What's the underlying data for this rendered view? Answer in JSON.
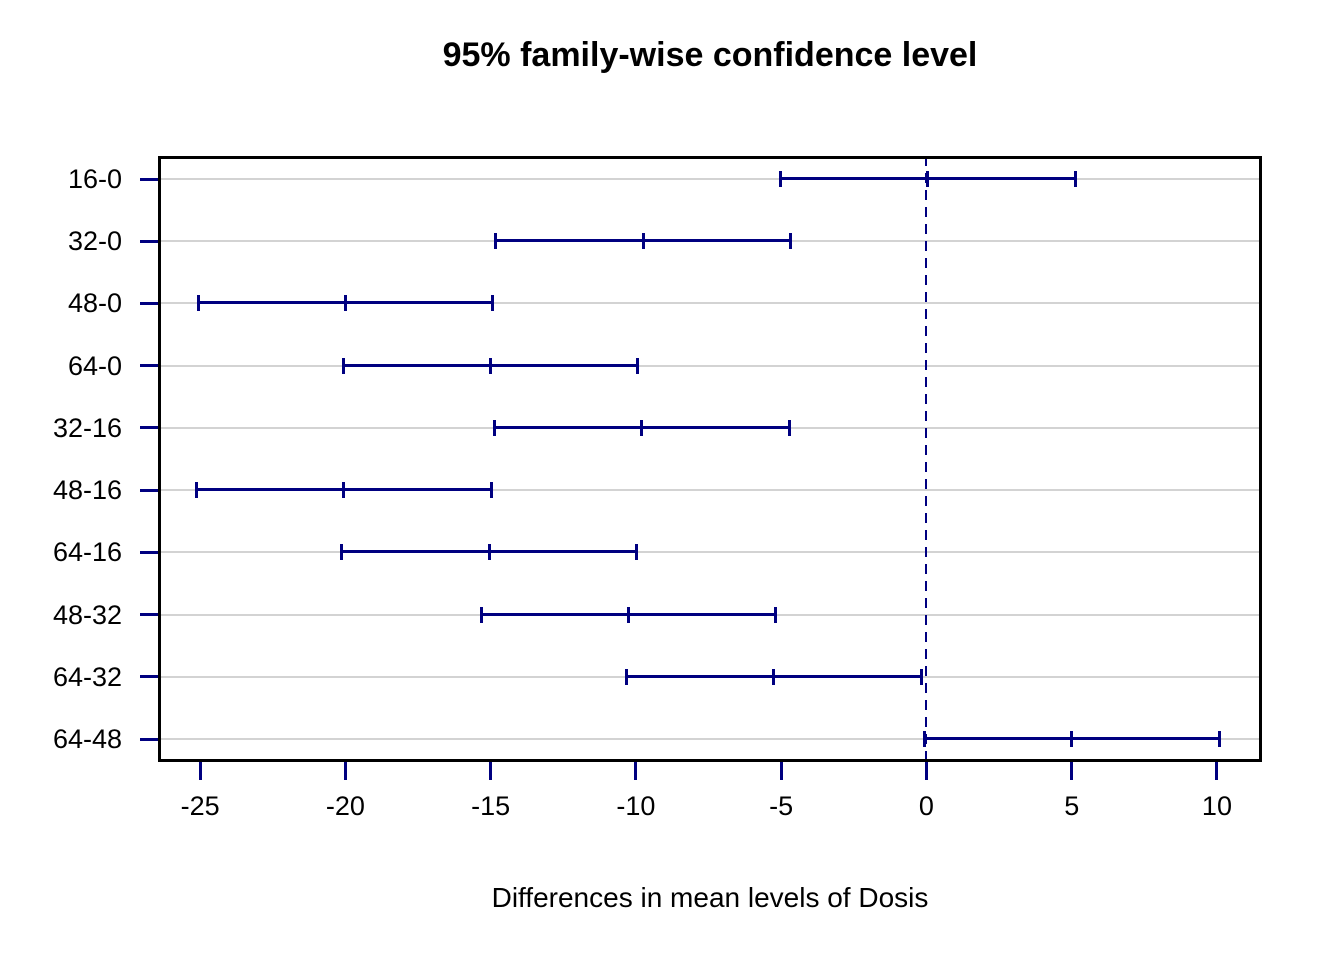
{
  "chart_data": {
    "type": "scatter",
    "subtype": "horizontal-confidence-intervals (Tukey HSD family-wise CI plot)",
    "title": "95% family-wise confidence level",
    "xlabel": "Differences in mean levels of Dosis",
    "ylabel": "",
    "categories": [
      "16-0",
      "32-0",
      "48-0",
      "64-0",
      "32-16",
      "48-16",
      "64-16",
      "48-32",
      "64-32",
      "64-48"
    ],
    "intervals": [
      {
        "comparison": "16-0",
        "lower": -5.02,
        "diff": 0.05,
        "upper": 5.12
      },
      {
        "comparison": "32-0",
        "lower": -14.82,
        "diff": -9.75,
        "upper": -4.68
      },
      {
        "comparison": "48-0",
        "lower": -25.07,
        "diff": -20.0,
        "upper": -14.93
      },
      {
        "comparison": "64-0",
        "lower": -20.07,
        "diff": -15.0,
        "upper": -9.93
      },
      {
        "comparison": "32-16",
        "lower": -14.87,
        "diff": -9.8,
        "upper": -4.73
      },
      {
        "comparison": "48-16",
        "lower": -25.12,
        "diff": -20.05,
        "upper": -14.98
      },
      {
        "comparison": "64-16",
        "lower": -20.12,
        "diff": -15.05,
        "upper": -9.98
      },
      {
        "comparison": "48-32",
        "lower": -15.32,
        "diff": -10.25,
        "upper": -5.18
      },
      {
        "comparison": "64-32",
        "lower": -10.32,
        "diff": -5.25,
        "upper": -0.18
      },
      {
        "comparison": "64-48",
        "lower": -0.07,
        "diff": 5.0,
        "upper": 10.07
      }
    ],
    "xticks": [
      -25,
      -20,
      -15,
      -10,
      -5,
      0,
      5,
      10
    ],
    "xlim": [
      -26.45,
      11.55
    ],
    "reference_line_x": 0,
    "grid": "horizontal light-gray line at each comparison row",
    "legend_position": "none",
    "colors": {
      "interval": "#000080",
      "reference_line": "#000080",
      "grid": "#d3d3d3",
      "axis_box": "#000000",
      "tick_marks": "#000080",
      "text": "#000000",
      "background": "#ffffff"
    }
  }
}
